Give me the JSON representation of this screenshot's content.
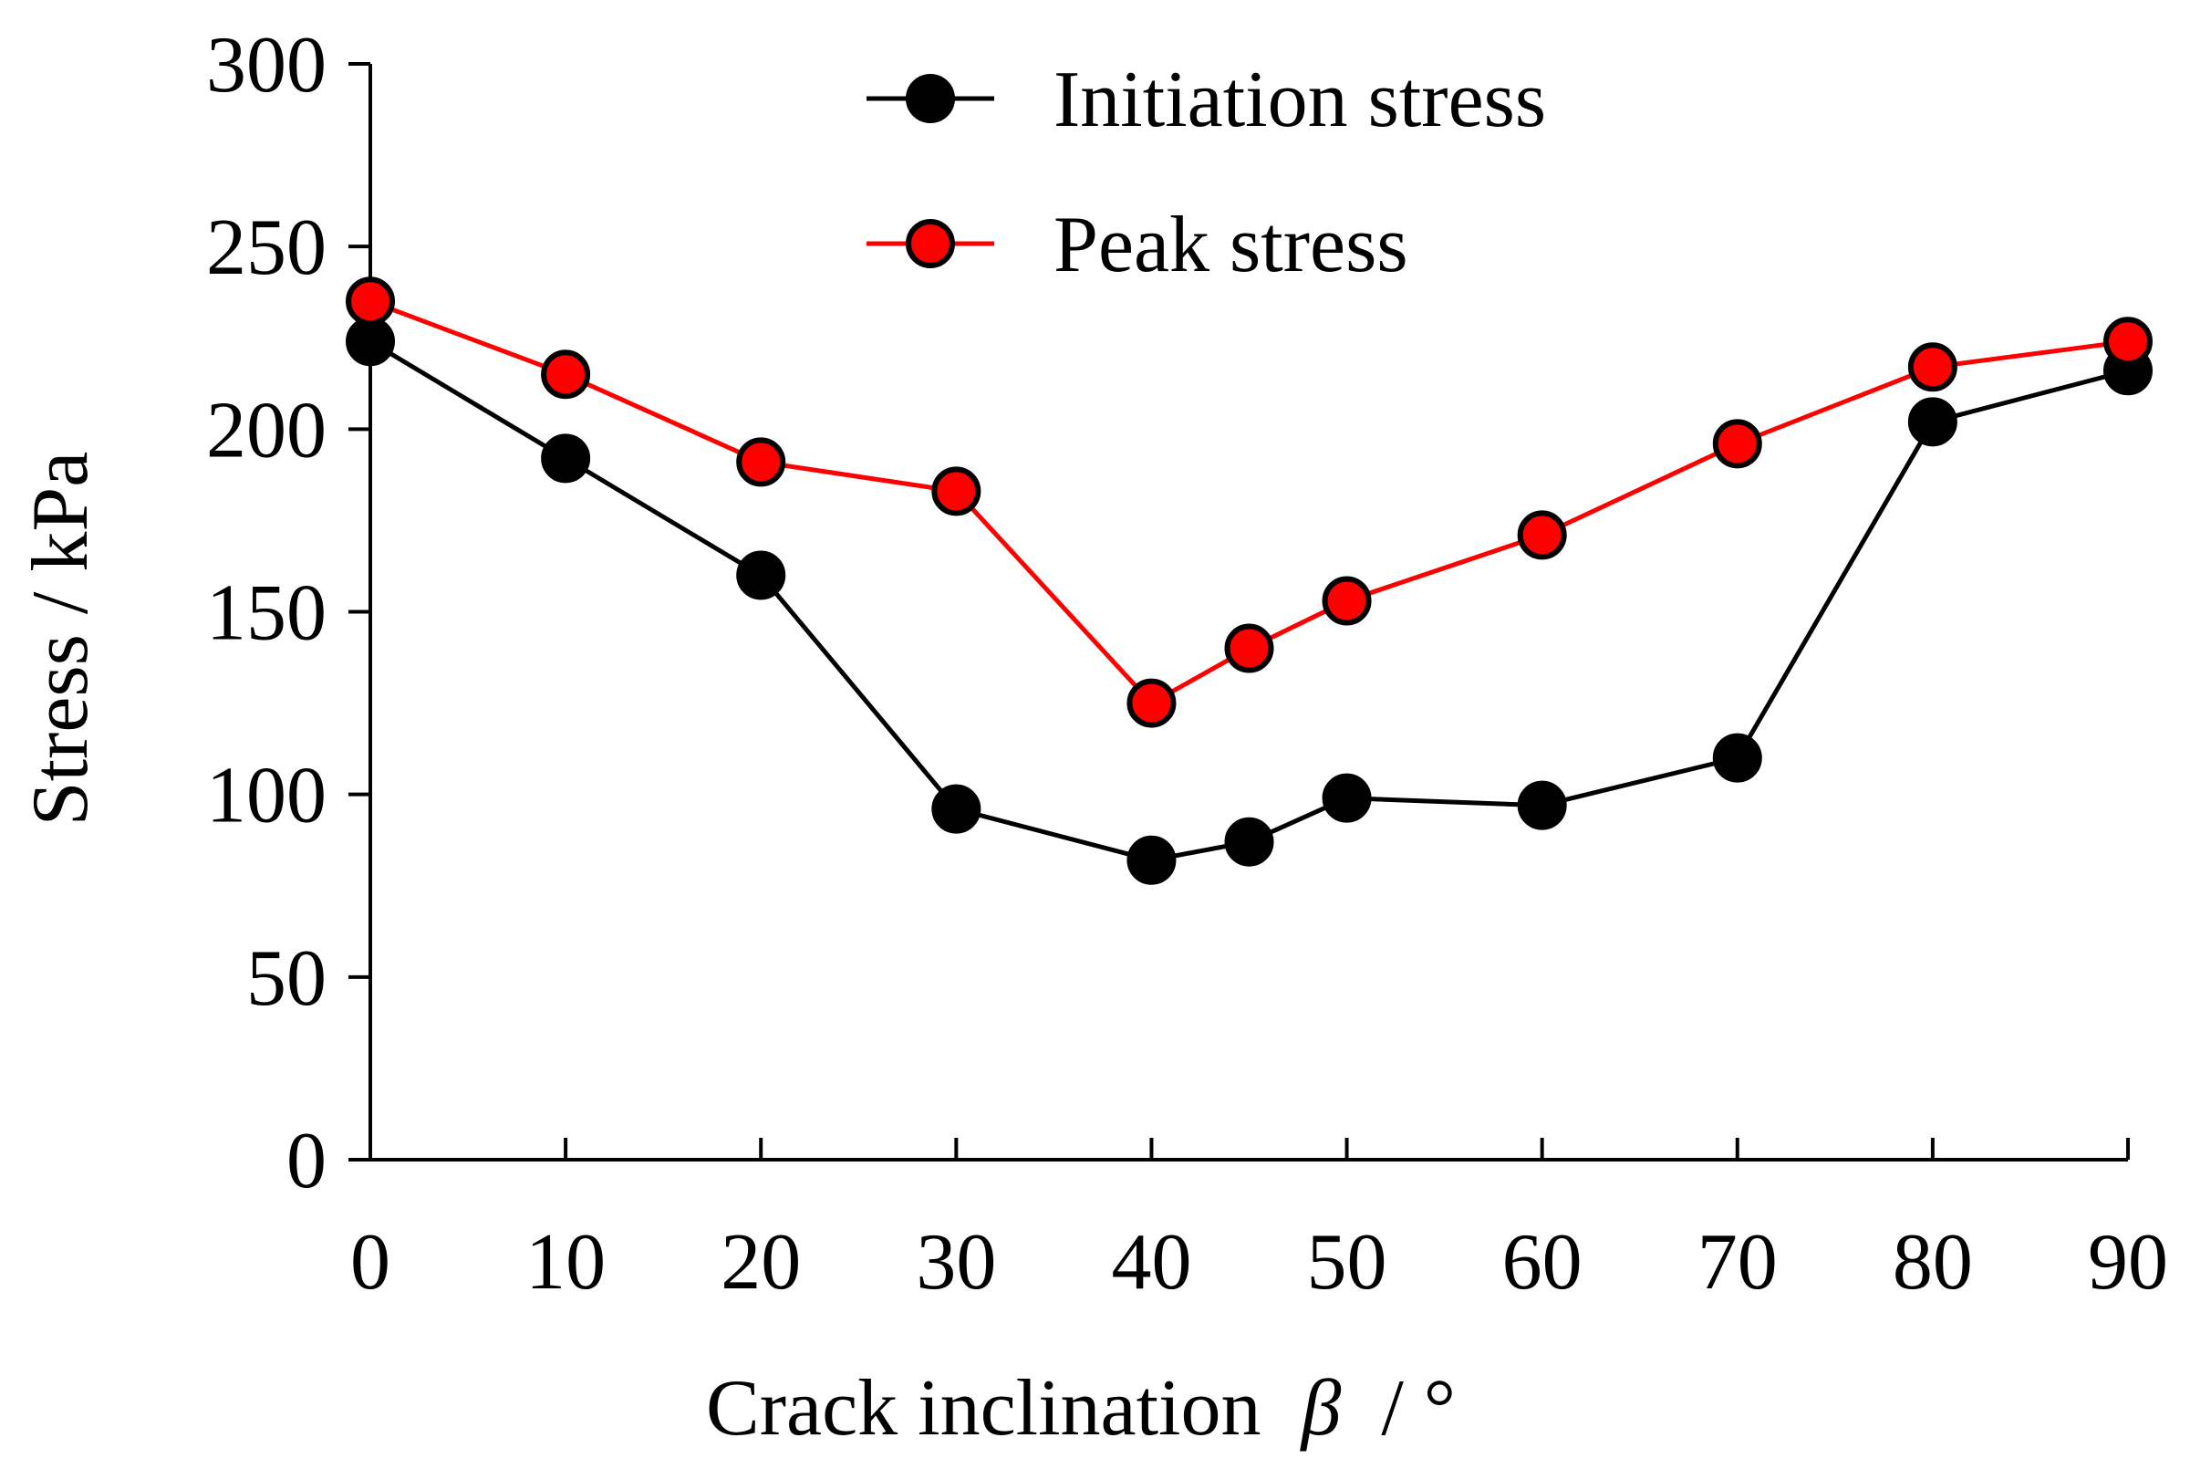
{
  "chart_data": {
    "type": "line",
    "title": "",
    "xlabel": "Crack inclination",
    "xlabel_symbol": "β",
    "xlabel_unit": "/ °",
    "ylabel": "Stress / kPa",
    "x": [
      0,
      10,
      20,
      30,
      40,
      45,
      50,
      60,
      70,
      80,
      90
    ],
    "xticks": [
      0,
      10,
      20,
      30,
      40,
      50,
      60,
      70,
      80,
      90
    ],
    "yticks": [
      0,
      50,
      100,
      150,
      200,
      250,
      300
    ],
    "xlim": [
      0,
      90
    ],
    "ylim": [
      0,
      300
    ],
    "grid": false,
    "legend_position": "top-center",
    "series": [
      {
        "name": "Initiation stress",
        "color": "#000000",
        "marker_fill": "#000000",
        "values": [
          224,
          192,
          160,
          96,
          82,
          87,
          99,
          97,
          110,
          202,
          216
        ]
      },
      {
        "name": "Peak stress",
        "color": "#ff0000",
        "marker_fill": "#ff0000",
        "values": [
          235,
          215,
          191,
          183,
          125,
          140,
          153,
          171,
          196,
          217,
          224
        ]
      }
    ]
  }
}
